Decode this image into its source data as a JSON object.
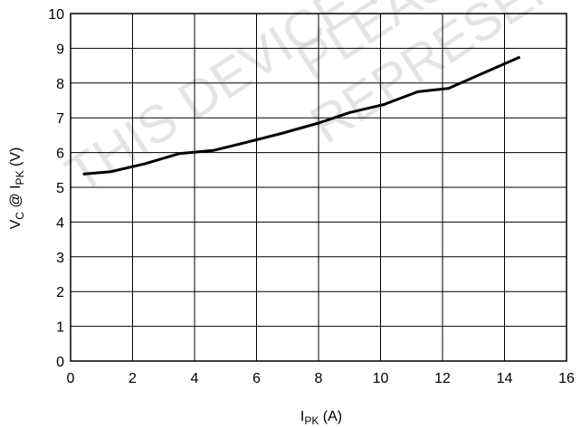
{
  "chart_data": {
    "type": "line",
    "x_axis": {
      "label_main": "I",
      "label_sub": "PK",
      "label_unit": " (A)",
      "range": [
        0,
        16
      ],
      "ticks": [
        "0",
        "2",
        "4",
        "6",
        "8",
        "10",
        "12",
        "14",
        "16"
      ]
    },
    "y_axis": {
      "label_main": "V",
      "label_sub": "C",
      "label_mid": " @ I",
      "label_sub2": "PK",
      "label_unit": " (V)",
      "range": [
        0,
        10
      ],
      "ticks": [
        "0",
        "1",
        "2",
        "3",
        "4",
        "5",
        "6",
        "7",
        "8",
        "9",
        "10"
      ]
    },
    "grid": true,
    "series": [
      {
        "color": "#000000",
        "x": [
          0.4,
          1.3,
          2.4,
          3.5,
          4.6,
          5.7,
          6.8,
          8.0,
          9.0,
          10.1,
          11.2,
          12.2,
          13.3,
          14.5
        ],
        "y": [
          5.38,
          5.45,
          5.68,
          5.97,
          6.06,
          6.3,
          6.55,
          6.85,
          7.15,
          7.38,
          7.75,
          7.85,
          8.28,
          8.75
        ]
      }
    ]
  },
  "watermark": {
    "lines": [
      "THIS DEVICE IS",
      "PLEASE",
      "REPRESENT"
    ]
  }
}
